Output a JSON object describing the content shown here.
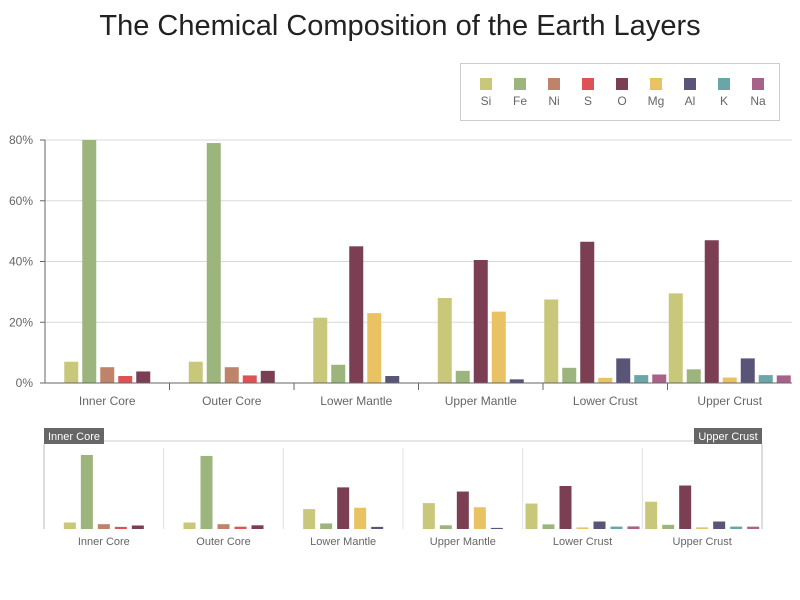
{
  "chart_data": {
    "type": "bar",
    "title": "The Chemical Composition of the Earth Layers",
    "categories": [
      "Inner Core",
      "Outer Core",
      "Lower Mantle",
      "Upper Mantle",
      "Lower Crust",
      "Upper Crust"
    ],
    "y_ticks": [
      "0%",
      "20%",
      "40%",
      "60%",
      "80%"
    ],
    "ylim": [
      0,
      80
    ],
    "grid": true,
    "legend_position": "top-right",
    "series": [
      {
        "name": "Si",
        "color": "#c9c77a",
        "values": [
          7,
          7,
          21.5,
          28,
          27.5,
          29.5
        ]
      },
      {
        "name": "Fe",
        "color": "#9bb57c",
        "values": [
          80,
          79,
          6,
          4,
          5,
          4.5
        ]
      },
      {
        "name": "Ni",
        "color": "#bf836a",
        "values": [
          5.2,
          5.2,
          null,
          null,
          null,
          null
        ]
      },
      {
        "name": "S",
        "color": "#de5154",
        "values": [
          2.3,
          2.5,
          null,
          null,
          null,
          null
        ]
      },
      {
        "name": "O",
        "color": "#7c3e52",
        "values": [
          3.8,
          4,
          45,
          40.5,
          46.5,
          47
        ]
      },
      {
        "name": "Mg",
        "color": "#e8c263",
        "values": [
          null,
          null,
          23,
          23.5,
          1.7,
          1.8
        ]
      },
      {
        "name": "Al",
        "color": "#585578",
        "values": [
          null,
          null,
          2.3,
          1.2,
          8.1,
          8.1
        ]
      },
      {
        "name": "K",
        "color": "#6aa6a8",
        "values": [
          null,
          null,
          null,
          null,
          2.6,
          2.6
        ]
      },
      {
        "name": "Na",
        "color": "#a8628a",
        "values": [
          null,
          null,
          null,
          null,
          2.8,
          2.5
        ]
      }
    ]
  },
  "navigator": {
    "start_label": "Inner Core",
    "end_label": "Upper Crust"
  }
}
